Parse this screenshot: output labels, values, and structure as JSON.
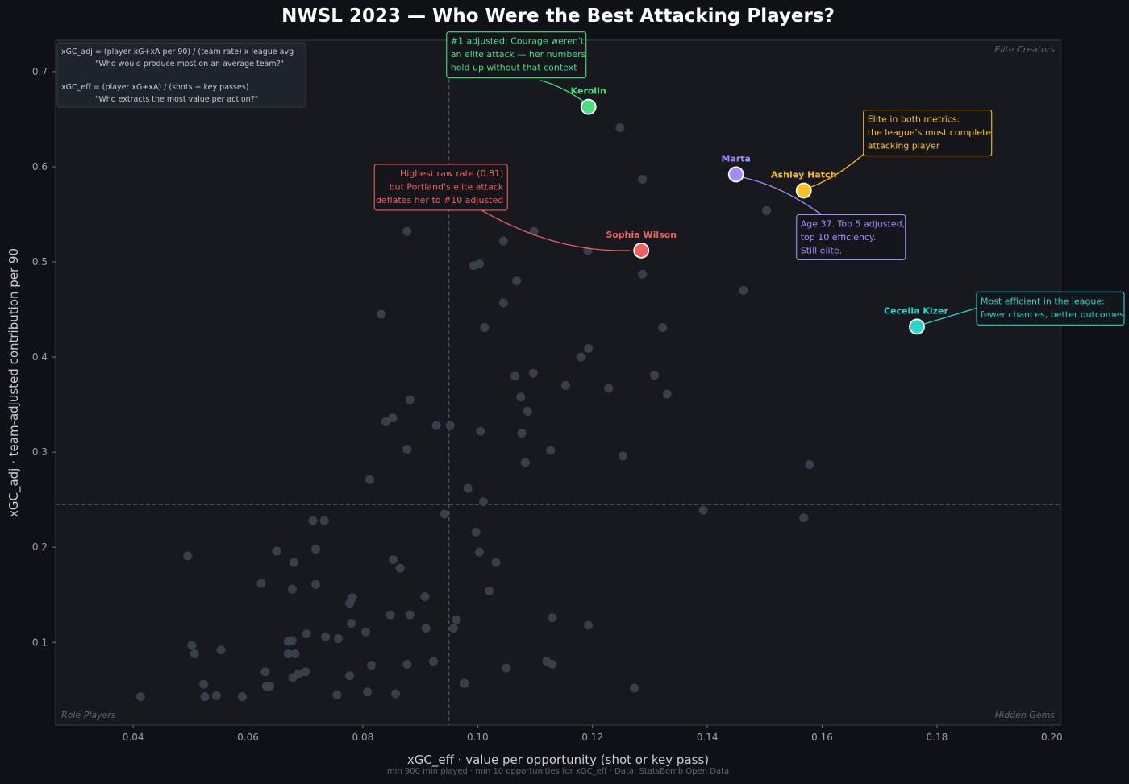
{
  "title": "NWSL 2023 — Who Were the Best Attacking Players?",
  "xlabel": "xGC_eff  ·  value per opportunity (shot or key pass)",
  "ylabel": "xGC_adj  ·  team-adjusted contribution per 90",
  "footnote": "min 900 min played · min 10 opportunities for xGC_eff · Data: StatsBomb Open Data",
  "formula_box": {
    "line1": "xGC_adj  = (player xG+xA per 90) / (team rate) x league avg",
    "line2": "\"Who would produce most on an average team?\"",
    "line3": "xGC_eff  = (player xG+xA) / (shots + key passes)",
    "line4": "\"Who extracts the most value per action?\""
  },
  "quadrants": {
    "top_right": "Elite Creators",
    "bottom_left": "Role Players",
    "bottom_right": "Hidden Gems"
  },
  "colors": {
    "background": "#0f1116",
    "plot_bg": "#17191f",
    "point": "#3d4350",
    "kerolin": "#4ade80",
    "hatch": "#fbbf24",
    "marta": "#a78bfa",
    "wilson": "#f06060",
    "kizer": "#2dd4c8"
  },
  "chart_data": {
    "type": "scatter",
    "xlim": [
      0.0265,
      0.2015
    ],
    "ylim": [
      0.013,
      0.733
    ],
    "xticks": [
      0.04,
      0.06,
      0.08,
      0.1,
      0.12,
      0.14,
      0.16,
      0.18,
      0.2
    ],
    "xtick_labels": [
      "0.04",
      "0.06",
      "0.08",
      "0.10",
      "0.12",
      "0.14",
      "0.16",
      "0.18",
      "0.20"
    ],
    "yticks": [
      0.1,
      0.2,
      0.3,
      0.4,
      0.5,
      0.6,
      0.7
    ],
    "ytick_labels": [
      "0.1",
      "0.2",
      "0.3",
      "0.4",
      "0.5",
      "0.6",
      "0.7"
    ],
    "reference_lines": {
      "x": 0.095,
      "y": 0.245
    },
    "grid": false,
    "points": [
      [
        0.1248,
        0.641
      ],
      [
        0.1287,
        0.587
      ],
      [
        0.1503,
        0.554
      ],
      [
        0.0877,
        0.532
      ],
      [
        0.1098,
        0.532
      ],
      [
        0.1045,
        0.522
      ],
      [
        0.1192,
        0.512
      ],
      [
        0.1003,
        0.498
      ],
      [
        0.0993,
        0.496
      ],
      [
        0.1287,
        0.487
      ],
      [
        0.1068,
        0.48
      ],
      [
        0.1463,
        0.47
      ],
      [
        0.1045,
        0.457
      ],
      [
        0.0832,
        0.445
      ],
      [
        0.1012,
        0.431
      ],
      [
        0.1322,
        0.431
      ],
      [
        0.1193,
        0.409
      ],
      [
        0.118,
        0.4
      ],
      [
        0.1097,
        0.383
      ],
      [
        0.1065,
        0.38
      ],
      [
        0.1308,
        0.381
      ],
      [
        0.1153,
        0.37
      ],
      [
        0.1228,
        0.367
      ],
      [
        0.133,
        0.361
      ],
      [
        0.1075,
        0.358
      ],
      [
        0.0882,
        0.355
      ],
      [
        0.1087,
        0.343
      ],
      [
        0.0852,
        0.336
      ],
      [
        0.084,
        0.332
      ],
      [
        0.0928,
        0.328
      ],
      [
        0.0952,
        0.328
      ],
      [
        0.1005,
        0.322
      ],
      [
        0.1077,
        0.32
      ],
      [
        0.0877,
        0.303
      ],
      [
        0.1127,
        0.302
      ],
      [
        0.1253,
        0.296
      ],
      [
        0.1083,
        0.289
      ],
      [
        0.1578,
        0.287
      ],
      [
        0.0812,
        0.271
      ],
      [
        0.0983,
        0.262
      ],
      [
        0.101,
        0.248
      ],
      [
        0.1393,
        0.239
      ],
      [
        0.0942,
        0.235
      ],
      [
        0.1568,
        0.231
      ],
      [
        0.0713,
        0.228
      ],
      [
        0.0733,
        0.228
      ],
      [
        0.0997,
        0.216
      ],
      [
        0.0718,
        0.198
      ],
      [
        0.065,
        0.196
      ],
      [
        0.1003,
        0.195
      ],
      [
        0.0495,
        0.191
      ],
      [
        0.0853,
        0.187
      ],
      [
        0.068,
        0.184
      ],
      [
        0.1032,
        0.184
      ],
      [
        0.0865,
        0.178
      ],
      [
        0.0623,
        0.162
      ],
      [
        0.0718,
        0.161
      ],
      [
        0.0677,
        0.156
      ],
      [
        0.102,
        0.154
      ],
      [
        0.0908,
        0.148
      ],
      [
        0.0782,
        0.147
      ],
      [
        0.0777,
        0.141
      ],
      [
        0.0848,
        0.129
      ],
      [
        0.0882,
        0.129
      ],
      [
        0.113,
        0.126
      ],
      [
        0.0963,
        0.124
      ],
      [
        0.078,
        0.12
      ],
      [
        0.1193,
        0.118
      ],
      [
        0.091,
        0.115
      ],
      [
        0.0958,
        0.115
      ],
      [
        0.0805,
        0.111
      ],
      [
        0.0702,
        0.109
      ],
      [
        0.0735,
        0.106
      ],
      [
        0.0757,
        0.104
      ],
      [
        0.0677,
        0.102
      ],
      [
        0.067,
        0.101
      ],
      [
        0.0502,
        0.097
      ],
      [
        0.0553,
        0.092
      ],
      [
        0.0507,
        0.088
      ],
      [
        0.067,
        0.088
      ],
      [
        0.0682,
        0.088
      ],
      [
        0.0923,
        0.08
      ],
      [
        0.112,
        0.08
      ],
      [
        0.0877,
        0.077
      ],
      [
        0.0815,
        0.076
      ],
      [
        0.113,
        0.077
      ],
      [
        0.105,
        0.073
      ],
      [
        0.063,
        0.069
      ],
      [
        0.07,
        0.069
      ],
      [
        0.0688,
        0.067
      ],
      [
        0.0777,
        0.065
      ],
      [
        0.0678,
        0.063
      ],
      [
        0.0523,
        0.056
      ],
      [
        0.0977,
        0.057
      ],
      [
        0.0632,
        0.054
      ],
      [
        0.0638,
        0.054
      ],
      [
        0.1273,
        0.052
      ],
      [
        0.0808,
        0.048
      ],
      [
        0.0857,
        0.046
      ],
      [
        0.0755,
        0.045
      ],
      [
        0.0413,
        0.043
      ],
      [
        0.0525,
        0.043
      ],
      [
        0.0545,
        0.044
      ],
      [
        0.059,
        0.043
      ]
    ],
    "highlighted": [
      {
        "name": "Kerolin",
        "x": 0.1193,
        "y": 0.663,
        "color_key": "kerolin",
        "note": [
          "#1 adjusted: Courage weren't",
          "an elite attack — her numbers",
          "hold up without that context"
        ]
      },
      {
        "name": "Marta",
        "x": 0.145,
        "y": 0.592,
        "color_key": "marta",
        "note": [
          "Age 37. Top 5 adjusted,",
          "top 10 efficiency.",
          "Still elite."
        ]
      },
      {
        "name": "Ashley Hatch",
        "x": 0.1568,
        "y": 0.575,
        "color_key": "hatch",
        "note": [
          "Elite in both metrics:",
          "the league's most complete",
          "attacking player"
        ]
      },
      {
        "name": "Sophia Wilson",
        "x": 0.1285,
        "y": 0.512,
        "color_key": "wilson",
        "note": [
          "Highest raw rate (0.81)",
          "but Portland's elite attack",
          "deflates her to #10 adjusted"
        ]
      },
      {
        "name": "Cecelia Kizer",
        "x": 0.1765,
        "y": 0.432,
        "color_key": "kizer",
        "note": [
          "Most efficient in the league:",
          "fewer chances, better outcomes"
        ]
      }
    ]
  }
}
